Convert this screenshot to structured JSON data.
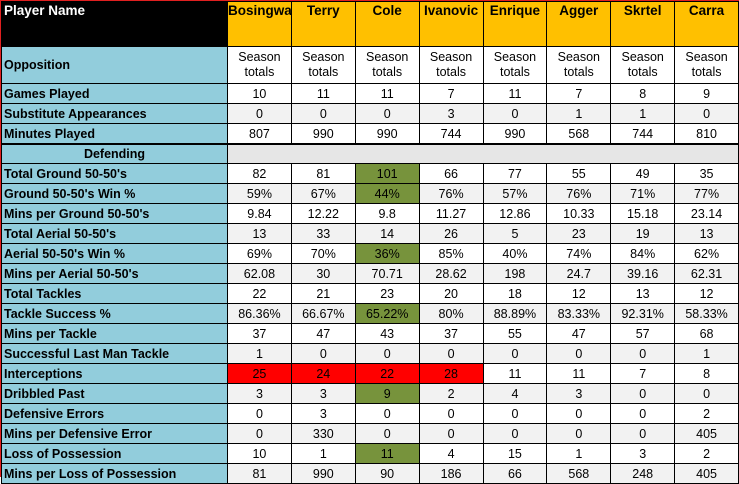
{
  "header": {
    "label": "Player Name",
    "players": [
      "Bosingwa",
      "Terry",
      "Cole",
      "Ivanovic",
      "Enrique",
      "Agger",
      "Skrtel",
      "Carra"
    ]
  },
  "opposition": {
    "label": "Opposition",
    "value": "Season totals"
  },
  "general_rows": [
    {
      "label": "Games Played",
      "values": [
        "10",
        "11",
        "11",
        "7",
        "11",
        "7",
        "8",
        "9"
      ]
    },
    {
      "label": "Substitute Appearances",
      "values": [
        "0",
        "0",
        "0",
        "3",
        "0",
        "1",
        "1",
        "0"
      ]
    },
    {
      "label": "Minutes Played",
      "values": [
        "807",
        "990",
        "990",
        "744",
        "990",
        "568",
        "744",
        "810"
      ]
    }
  ],
  "section": {
    "title": "Defending"
  },
  "defending_rows": [
    {
      "label": "Total Ground 50-50's",
      "values": [
        "82",
        "81",
        "101",
        "66",
        "77",
        "55",
        "49",
        "35"
      ],
      "highlights": [
        "",
        "",
        "green",
        "",
        "",
        "",
        "",
        ""
      ]
    },
    {
      "label": "Ground 50-50's Win %",
      "values": [
        "59%",
        "67%",
        "44%",
        "76%",
        "57%",
        "76%",
        "71%",
        "77%"
      ],
      "highlights": [
        "",
        "",
        "green",
        "",
        "",
        "",
        "",
        ""
      ]
    },
    {
      "label": "Mins per Ground 50-50's",
      "values": [
        "9.84",
        "12.22",
        "9.8",
        "11.27",
        "12.86",
        "10.33",
        "15.18",
        "23.14"
      ],
      "highlights": [
        "",
        "",
        "",
        "",
        "",
        "",
        "",
        ""
      ]
    },
    {
      "label": "Total Aerial 50-50's",
      "values": [
        "13",
        "33",
        "14",
        "26",
        "5",
        "23",
        "19",
        "13"
      ],
      "highlights": [
        "",
        "",
        "",
        "",
        "",
        "",
        "",
        ""
      ]
    },
    {
      "label": "Aerial 50-50's Win %",
      "values": [
        "69%",
        "70%",
        "36%",
        "85%",
        "40%",
        "74%",
        "84%",
        "62%"
      ],
      "highlights": [
        "",
        "",
        "green",
        "",
        "",
        "",
        "",
        ""
      ]
    },
    {
      "label": "Mins per Aerial 50-50's",
      "values": [
        "62.08",
        "30",
        "70.71",
        "28.62",
        "198",
        "24.7",
        "39.16",
        "62.31"
      ],
      "highlights": [
        "",
        "",
        "",
        "",
        "",
        "",
        "",
        ""
      ]
    },
    {
      "label": "Total Tackles",
      "values": [
        "22",
        "21",
        "23",
        "20",
        "18",
        "12",
        "13",
        "12"
      ],
      "highlights": [
        "",
        "",
        "",
        "",
        "",
        "",
        "",
        ""
      ]
    },
    {
      "label": "Tackle Success %",
      "values": [
        "86.36%",
        "66.67%",
        "65.22%",
        "80%",
        "88.89%",
        "83.33%",
        "92.31%",
        "58.33%"
      ],
      "highlights": [
        "",
        "",
        "green",
        "",
        "",
        "",
        "",
        ""
      ]
    },
    {
      "label": "Mins per Tackle",
      "values": [
        "37",
        "47",
        "43",
        "37",
        "55",
        "47",
        "57",
        "68"
      ],
      "highlights": [
        "",
        "",
        "",
        "",
        "",
        "",
        "",
        ""
      ]
    },
    {
      "label": "Successful Last Man Tackle",
      "values": [
        "1",
        "0",
        "0",
        "0",
        "0",
        "0",
        "0",
        "1"
      ],
      "highlights": [
        "",
        "",
        "",
        "",
        "",
        "",
        "",
        ""
      ]
    },
    {
      "label": "Interceptions",
      "values": [
        "25",
        "24",
        "22",
        "28",
        "11",
        "11",
        "7",
        "8"
      ],
      "highlights": [
        "red",
        "red",
        "red",
        "red",
        "",
        "",
        "",
        ""
      ]
    },
    {
      "label": "Dribbled Past",
      "values": [
        "3",
        "3",
        "9",
        "2",
        "4",
        "3",
        "0",
        "0"
      ],
      "highlights": [
        "",
        "",
        "green",
        "",
        "",
        "",
        "",
        ""
      ]
    },
    {
      "label": "Defensive Errors",
      "values": [
        "0",
        "3",
        "0",
        "0",
        "0",
        "0",
        "0",
        "2"
      ],
      "highlights": [
        "",
        "",
        "",
        "",
        "",
        "",
        "",
        ""
      ]
    },
    {
      "label": "Mins per Defensive Error",
      "values": [
        "0",
        "330",
        "0",
        "0",
        "0",
        "0",
        "0",
        "405"
      ],
      "highlights": [
        "",
        "",
        "",
        "",
        "",
        "",
        "",
        ""
      ]
    },
    {
      "label": "Loss of Possession",
      "values": [
        "10",
        "1",
        "11",
        "4",
        "15",
        "1",
        "3",
        "2"
      ],
      "highlights": [
        "",
        "",
        "green",
        "",
        "",
        "",
        "",
        ""
      ]
    },
    {
      "label": "Mins per Loss of Possession",
      "values": [
        "81",
        "990",
        "90",
        "186",
        "66",
        "568",
        "248",
        "405"
      ],
      "highlights": [
        "",
        "",
        "",
        "",
        "",
        "",
        "",
        ""
      ]
    }
  ],
  "colors": {
    "header_player": "#ffc000",
    "label_column": "#92cddc",
    "highlight_green": "#77933c",
    "highlight_red": "#ff0000",
    "frame": "#e02020"
  }
}
